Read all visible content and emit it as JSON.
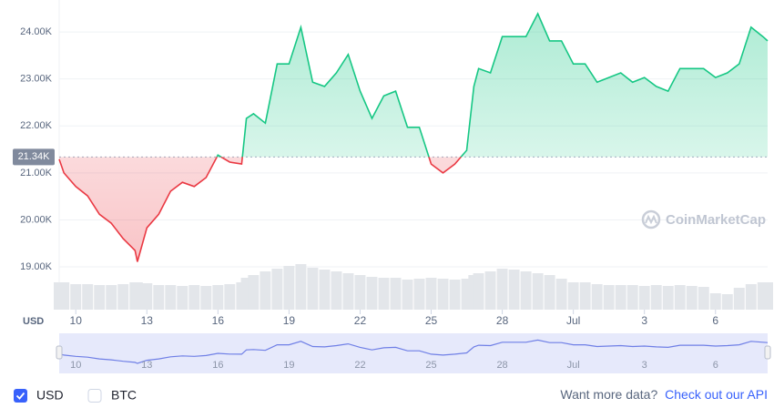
{
  "chart_data": {
    "type": "line",
    "x": [
      9.3,
      9.5,
      10,
      10.5,
      11,
      11.5,
      12,
      12.5,
      12.6,
      13,
      13.5,
      14,
      14.5,
      15,
      15.5,
      16,
      16.5,
      17,
      17.2,
      17.5,
      18,
      18.5,
      19,
      19.5,
      20,
      20.5,
      21,
      21.5,
      22,
      22.5,
      23,
      23.5,
      24,
      24.5,
      25,
      25.5,
      26,
      26.5,
      26.8,
      27,
      27.5,
      28,
      28.5,
      29,
      29.5,
      30,
      30.5,
      31,
      31.5,
      32,
      32.5,
      33,
      33.5,
      34,
      34.5,
      35,
      35.5,
      36,
      36.5,
      37,
      37.5,
      38,
      38.5,
      39,
      39.2
    ],
    "values": [
      21290,
      21000,
      20710,
      20510,
      20120,
      19930,
      19600,
      19350,
      19110,
      19830,
      20120,
      20610,
      20800,
      20710,
      20900,
      21380,
      21230,
      21190,
      22160,
      22260,
      22060,
      23320,
      23320,
      24100,
      22930,
      22840,
      23130,
      23520,
      22740,
      22160,
      22640,
      22740,
      21970,
      21970,
      21190,
      21000,
      21190,
      21480,
      22840,
      23220,
      23130,
      23900,
      23900,
      23900,
      24390,
      23810,
      23810,
      23320,
      23320,
      22930,
      23030,
      23130,
      22930,
      23030,
      22840,
      22740,
      23220,
      23220,
      23220,
      23030,
      23130,
      23320,
      24100,
      23900,
      23810
    ],
    "volume": [
      30,
      30,
      28,
      28,
      27,
      27,
      28,
      30,
      30,
      29,
      27,
      27,
      26,
      27,
      26,
      27,
      28,
      30,
      35,
      38,
      42,
      45,
      48,
      50,
      46,
      44,
      42,
      40,
      38,
      36,
      35,
      35,
      33,
      34,
      35,
      34,
      33,
      34,
      38,
      40,
      42,
      45,
      44,
      42,
      40,
      38,
      34,
      30,
      30,
      28,
      27,
      27,
      27,
      26,
      27,
      26,
      27,
      26,
      25,
      18,
      17,
      24,
      28,
      30,
      30
    ],
    "up_color": "#16c784",
    "down_color": "#ea3943",
    "navigator_color": "#6f7fe6",
    "baseline": {
      "value": 21340,
      "label": "21.34K"
    },
    "xlim": [
      9.3,
      39.2
    ],
    "xticks": [
      10,
      13,
      16,
      19,
      22,
      25,
      28,
      {
        "value": 31,
        "label": "Jul"
      },
      {
        "value": 34,
        "label": "3"
      },
      {
        "value": 37,
        "label": "6"
      }
    ],
    "ylim": [
      18090,
      24680
    ],
    "yticks": [
      {
        "value": 19000,
        "label": "19.00K"
      },
      {
        "value": 20000,
        "label": "20.00K"
      },
      {
        "value": 21000,
        "label": "21.00K"
      },
      {
        "value": 22000,
        "label": "22.00K"
      },
      {
        "value": 23000,
        "label": "23.00K"
      },
      {
        "value": 24000,
        "label": "24.00K"
      }
    ],
    "grid": true,
    "currency_label": "USD",
    "watermark": "CoinMarketCap",
    "toggles": [
      {
        "label": "USD",
        "checked": true
      },
      {
        "label": "BTC",
        "checked": false
      }
    ],
    "footer": {
      "prompt": "Want more data?",
      "link": "Check out our API"
    }
  }
}
